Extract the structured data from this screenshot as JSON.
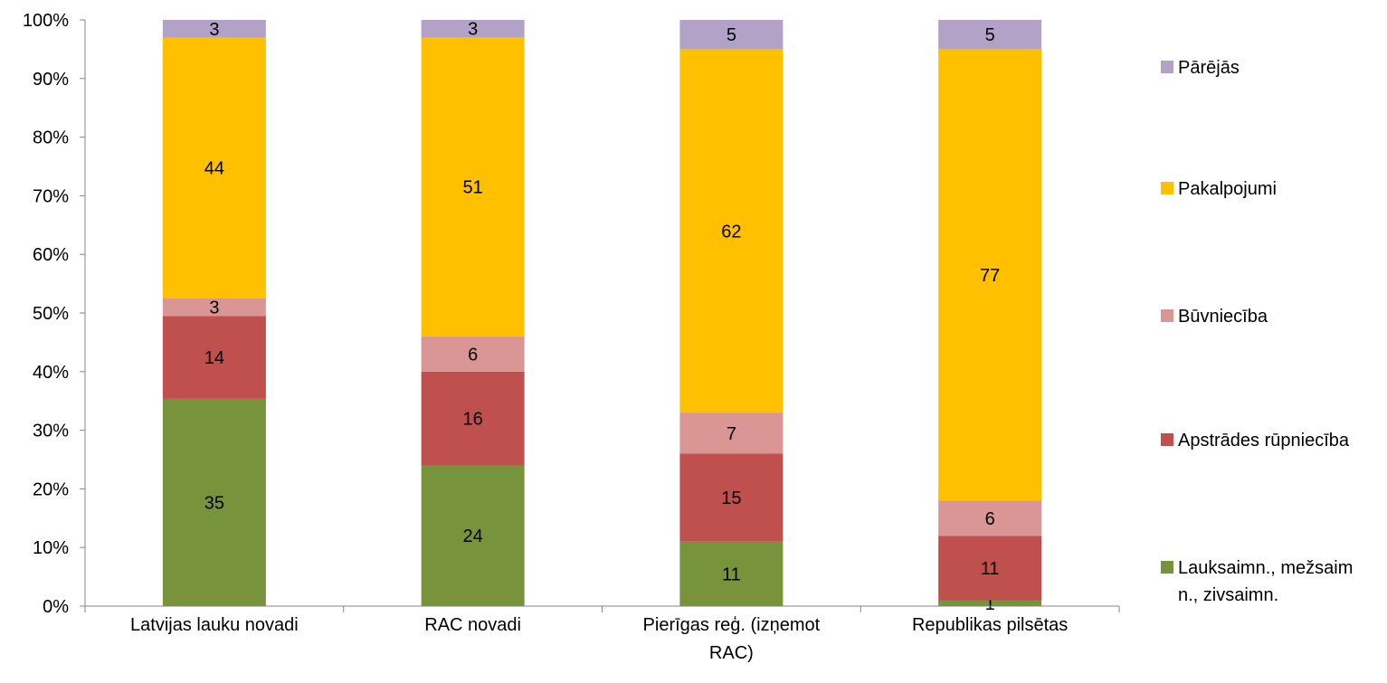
{
  "chart_data": {
    "type": "bar",
    "stacked": true,
    "percent_stacked": true,
    "categories": [
      [
        "Latvijas lauku novadi"
      ],
      [
        "RAC novadi"
      ],
      [
        "Pierīgas reģ. (izņemot",
        "RAC)"
      ],
      [
        "Republikas pilsētas"
      ]
    ],
    "series": [
      {
        "name": [
          "Lauksaimn., mežsaim",
          "n., zivsaimn."
        ],
        "color": "#77933C",
        "values": [
          35,
          24,
          11,
          1
        ]
      },
      {
        "name": [
          "Apstrādes rūpniecība"
        ],
        "color": "#C0504D",
        "values": [
          14,
          16,
          15,
          11
        ]
      },
      {
        "name": [
          "Būvniecība"
        ],
        "color": "#D99694",
        "values": [
          3,
          6,
          7,
          6
        ]
      },
      {
        "name": [
          "Pakalpojumi"
        ],
        "color": "#FFC000",
        "values": [
          44,
          51,
          62,
          77
        ]
      },
      {
        "name": [
          "Pārējās"
        ],
        "color": "#B3A2C7",
        "values": [
          3,
          3,
          5,
          5
        ]
      }
    ],
    "yticks": [
      "0%",
      "10%",
      "20%",
      "30%",
      "40%",
      "50%",
      "60%",
      "70%",
      "80%",
      "90%",
      "100%"
    ],
    "ylim": [
      0,
      100
    ],
    "legend_position": "right",
    "grid": false
  }
}
